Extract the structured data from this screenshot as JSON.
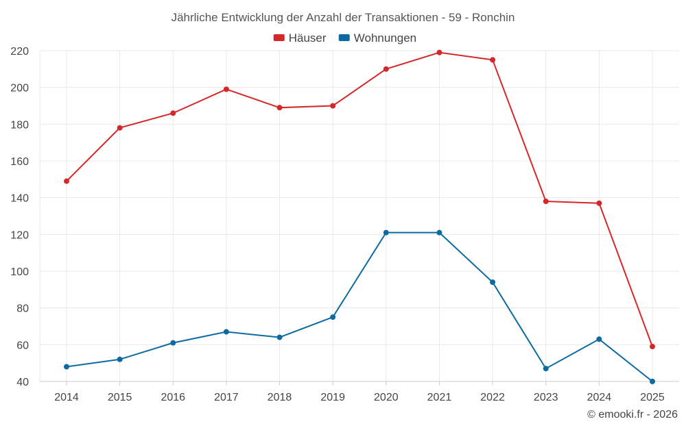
{
  "chart_data": {
    "type": "line",
    "title": "Jährliche Entwicklung der Anzahl der Transaktionen - 59 - Ronchin",
    "categories": [
      "2014",
      "2015",
      "2016",
      "2017",
      "2018",
      "2019",
      "2020",
      "2021",
      "2022",
      "2023",
      "2024",
      "2025"
    ],
    "series": [
      {
        "name": "Häuser",
        "color": "#d62728",
        "values": [
          149,
          178,
          186,
          199,
          189,
          190,
          210,
          219,
          215,
          138,
          137,
          59
        ]
      },
      {
        "name": "Wohnungen",
        "color": "#0a6aa1",
        "values": [
          48,
          52,
          61,
          67,
          64,
          75,
          121,
          121,
          94,
          47,
          63,
          40
        ]
      }
    ],
    "yticks": [
      40,
      60,
      80,
      100,
      120,
      140,
      160,
      180,
      200,
      220
    ],
    "ylim": [
      40,
      220
    ],
    "grid": true,
    "legend_position": "top-center"
  },
  "credit": "© emooki.fr - 2026"
}
